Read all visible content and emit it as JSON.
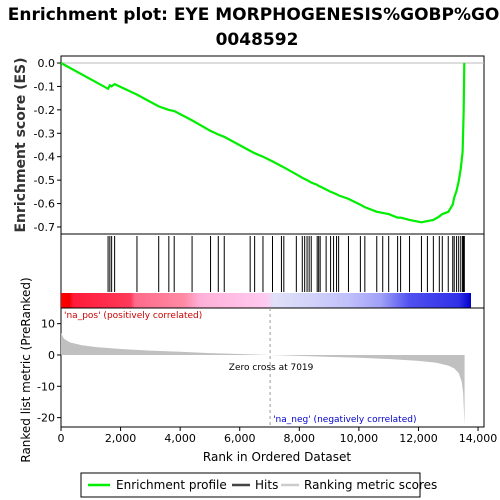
{
  "chart_data": {
    "type": "line",
    "title_lines": [
      "Enrichment plot: EYE MORPHOGENESIS%GOBP%GO:",
      "0048592"
    ],
    "es_ylabel": "Enrichment score (ES)",
    "metric_ylabel": "Ranked list metric (PreRanked)",
    "xlabel": "Rank in Ordered Dataset",
    "xlim": [
      0,
      14200
    ],
    "es_ylim": [
      -0.73,
      0.03
    ],
    "metric_ylim": [
      -23,
      15
    ],
    "x_ticks": [
      0,
      2000,
      4000,
      6000,
      8000,
      10000,
      12000,
      14000
    ],
    "x_tick_labels": [
      "0",
      "2,000",
      "4,000",
      "6,000",
      "8,000",
      "10,000",
      "12,000",
      "14,000"
    ],
    "es_ticks": [
      0.0,
      -0.1,
      -0.2,
      -0.3,
      -0.4,
      -0.5,
      -0.6,
      -0.7
    ],
    "es_tick_labels": [
      "0.0",
      "-0.1",
      "-0.2",
      "-0.3",
      "-0.4",
      "-0.5",
      "-0.6",
      "-0.7"
    ],
    "metric_ticks": [
      10,
      0,
      -10,
      -20
    ],
    "metric_tick_labels": [
      "10",
      "0",
      "-10",
      "-20"
    ],
    "zero_cross": 7019,
    "zero_cross_label": "Zero cross at 7019",
    "na_pos_label": "'na_pos' (positively correlated)",
    "na_neg_label": "'na_neg' (negatively correlated)",
    "total_ranks": 13550,
    "hits": [
      1580,
      1640,
      1700,
      1800,
      2550,
      3280,
      3620,
      3800,
      4400,
      5020,
      5280,
      5480,
      6350,
      6500,
      6780,
      7100,
      7400,
      7480,
      7900,
      8100,
      8180,
      8260,
      8330,
      8400,
      8600,
      8650,
      8700,
      8900,
      9050,
      9150,
      9250,
      9320,
      9650,
      10050,
      10200,
      10600,
      10800,
      11000,
      11300,
      11400,
      11700,
      12100,
      12300,
      12500,
      12700,
      12800,
      13000,
      13150,
      13200,
      13280,
      13350,
      13420,
      13480,
      13500,
      13520,
      13540
    ],
    "es_curve": {
      "x": [
        0,
        1580,
        1640,
        1700,
        1800,
        2550,
        3280,
        3620,
        3800,
        4400,
        5020,
        5280,
        5480,
        6350,
        6500,
        6780,
        7100,
        7400,
        7480,
        7900,
        8100,
        8180,
        8260,
        8330,
        8400,
        8600,
        8650,
        8700,
        8900,
        9050,
        9150,
        9250,
        9320,
        9650,
        10050,
        10200,
        10600,
        10800,
        11000,
        11300,
        11400,
        11700,
        12100,
        12300,
        12500,
        12700,
        12800,
        13000,
        13150,
        13200,
        13280,
        13350,
        13420,
        13480,
        13500,
        13520,
        13540
      ],
      "y": [
        0.0,
        -0.11,
        -0.095,
        -0.1,
        -0.09,
        -0.135,
        -0.185,
        -0.2,
        -0.205,
        -0.245,
        -0.29,
        -0.305,
        -0.315,
        -0.375,
        -0.385,
        -0.4,
        -0.42,
        -0.44,
        -0.445,
        -0.475,
        -0.49,
        -0.495,
        -0.5,
        -0.505,
        -0.51,
        -0.52,
        -0.525,
        -0.527,
        -0.54,
        -0.55,
        -0.555,
        -0.56,
        -0.565,
        -0.58,
        -0.605,
        -0.615,
        -0.635,
        -0.64,
        -0.645,
        -0.66,
        -0.66,
        -0.67,
        -0.68,
        -0.675,
        -0.67,
        -0.655,
        -0.645,
        -0.635,
        -0.605,
        -0.575,
        -0.545,
        -0.505,
        -0.45,
        -0.38,
        -0.3,
        -0.2,
        0.0
      ]
    },
    "metric_profile": {
      "x": [
        0,
        100,
        300,
        700,
        1200,
        2000,
        3000,
        4000,
        5000,
        6000,
        7019,
        8000,
        9000,
        10000,
        11000,
        12000,
        12600,
        13000,
        13200,
        13350,
        13450,
        13500,
        13550
      ],
      "y": [
        7.0,
        5.2,
        4.0,
        3.1,
        2.5,
        1.9,
        1.4,
        1.0,
        0.6,
        0.3,
        0.0,
        -0.3,
        -0.6,
        -0.9,
        -1.3,
        -1.9,
        -2.5,
        -3.4,
        -4.3,
        -5.8,
        -8.5,
        -12.0,
        -22.5
      ]
    },
    "legend": [
      {
        "label": "Enrichment profile",
        "color": "#00ee00"
      },
      {
        "label": "Hits",
        "color": "#444444"
      },
      {
        "label": "Ranking metric scores",
        "color": "#cccccc"
      }
    ],
    "colors": {
      "es": "#00ee00",
      "hits": "#000000",
      "metric": "#c0c0c0",
      "pos": "#ff0000",
      "neg": "#0000ff"
    }
  }
}
